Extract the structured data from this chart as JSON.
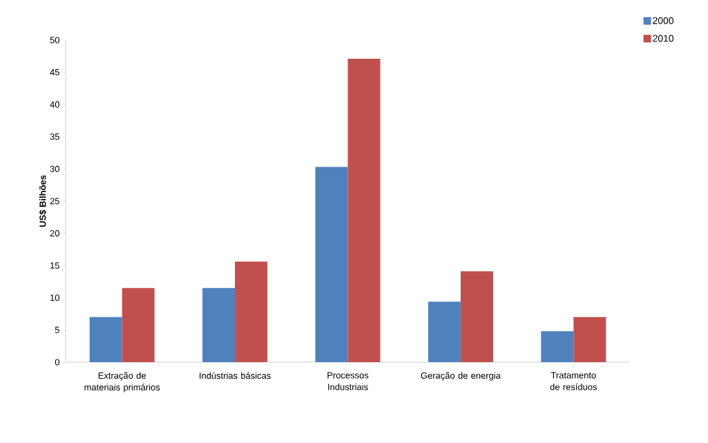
{
  "chart_data": {
    "type": "bar",
    "ylabel": "US$ Bilhões",
    "categories": [
      "Extração de materiais primários",
      "Indústrias básicas",
      "Processos Industriais",
      "Geração de energia",
      "Tratamento de resíduos"
    ],
    "series": [
      {
        "name": "2000",
        "color": "#4f81bd",
        "values": [
          7,
          11.5,
          30.3,
          9.4,
          4.8
        ]
      },
      {
        "name": "2010",
        "color": "#c0504d",
        "values": [
          11.5,
          15.6,
          47.1,
          14.1,
          7
        ]
      }
    ],
    "ylim": [
      0,
      50
    ],
    "yticks": [
      0,
      5,
      10,
      15,
      20,
      25,
      30,
      35,
      40,
      45,
      50
    ],
    "grid": false,
    "legend": "top right"
  }
}
